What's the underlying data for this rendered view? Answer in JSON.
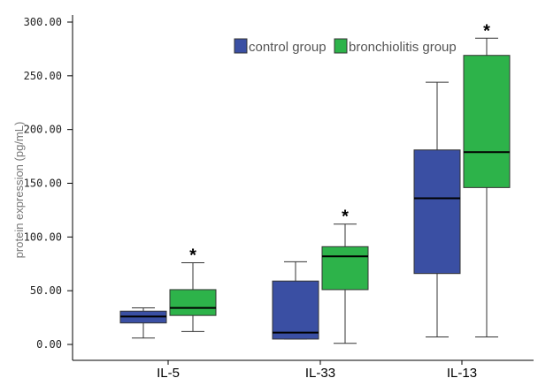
{
  "chart_data": {
    "type": "box",
    "categories": [
      "IL-5",
      "IL-33",
      "IL-13"
    ],
    "ylabel": "protein expression (pg/mL)",
    "ylim": [
      0,
      300
    ],
    "yticks": [
      "0.00",
      "50.00",
      "100.00",
      "150.00",
      "200.00",
      "250.00",
      "300.00"
    ],
    "grid": false,
    "legend_position": "top-right",
    "significance_marker": "*",
    "series": [
      {
        "name": "control group",
        "color": "#3a4fa3",
        "boxes": [
          {
            "category": "IL-5",
            "min": 6,
            "q1": 20,
            "median": 26,
            "q3": 31,
            "max": 34
          },
          {
            "category": "IL-33",
            "min": 5,
            "q1": 5,
            "median": 11,
            "q3": 59,
            "max": 77
          },
          {
            "category": "IL-13",
            "min": 7,
            "q1": 66,
            "median": 136,
            "q3": 181,
            "max": 244
          }
        ]
      },
      {
        "name": "bronchiolitis group",
        "color": "#2db34a",
        "boxes": [
          {
            "category": "IL-5",
            "min": 12,
            "q1": 27,
            "median": 34,
            "q3": 51,
            "max": 76,
            "significant": true
          },
          {
            "category": "IL-33",
            "min": 1,
            "q1": 51,
            "median": 82,
            "q3": 91,
            "max": 112,
            "significant": true
          },
          {
            "category": "IL-13",
            "min": 7,
            "q1": 146,
            "median": 179,
            "q3": 269,
            "max": 285,
            "significant": true
          }
        ]
      }
    ]
  }
}
